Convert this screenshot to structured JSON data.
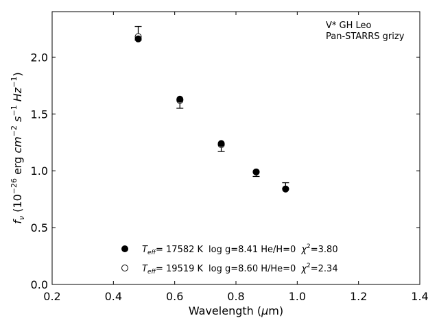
{
  "chart_data": {
    "type": "scatter",
    "annotations": [
      "V* GH Leo",
      "Pan-STARRS grizy"
    ],
    "xlabel": "Wavelength (μm)",
    "ylabel": "f_ν (10^-26 erg cm^-2 s^-1 Hz^-1)",
    "xlim": [
      0.2,
      1.4
    ],
    "ylim": [
      0.0,
      2.4
    ],
    "xticks": [
      0.2,
      0.4,
      0.6,
      0.8,
      1.0,
      1.2,
      1.4
    ],
    "yticks": [
      0.0,
      0.5,
      1.0,
      1.5,
      2.0
    ],
    "grid": false,
    "legend_position": "lower-left",
    "observed": {
      "x": [
        0.481,
        0.617,
        0.752,
        0.866,
        0.962
      ],
      "y": [
        2.21,
        1.59,
        1.2,
        0.97,
        0.87
      ],
      "yerr": [
        0.06,
        0.04,
        0.03,
        0.02,
        0.025
      ]
    },
    "series": [
      {
        "marker": "filled-circle",
        "label_teff": "= 17582 K",
        "label_rest": "log g=8.41  He/H=0",
        "label_chi": "=3.80",
        "x": [
          0.481,
          0.617,
          0.752,
          0.866,
          0.962
        ],
        "y": [
          2.16,
          1.63,
          1.24,
          0.99,
          0.84
        ]
      },
      {
        "marker": "open-circle",
        "label_teff": "= 19519 K",
        "label_rest": "log g=8.60  H/He=0",
        "label_chi": "=2.34",
        "x": [
          0.481,
          0.617,
          0.752,
          0.866,
          0.962
        ],
        "y": [
          2.18,
          1.62,
          1.23,
          0.99,
          0.84
        ]
      }
    ]
  }
}
